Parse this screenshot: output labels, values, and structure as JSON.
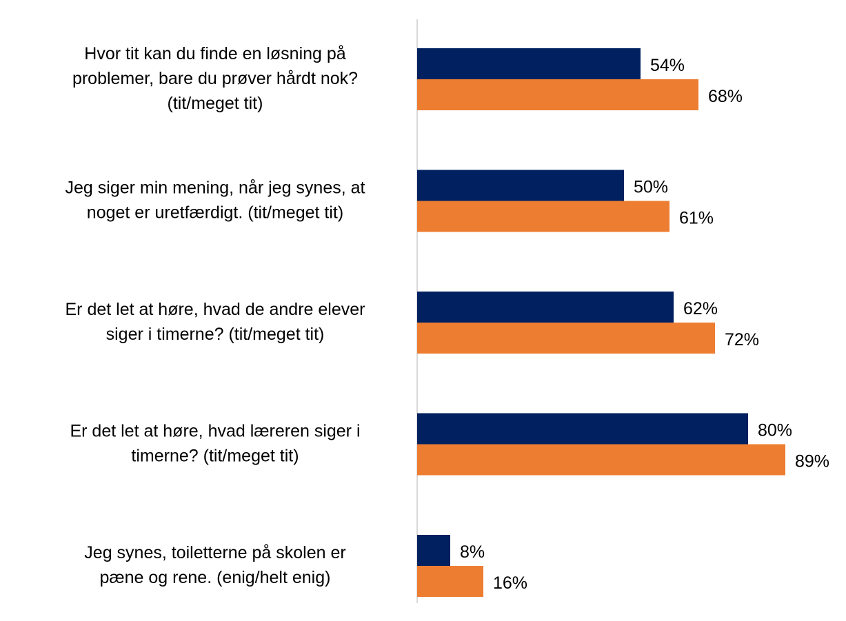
{
  "chart_data": {
    "type": "hbar",
    "categories": [
      "Hvor tit kan du finde en løsning på\nproblemer, bare du prøver hårdt nok?\n(tit/meget tit)",
      "Jeg siger min mening, når jeg synes, at\nnoget er uretfærdigt. (tit/meget tit)",
      "Er det let at høre, hvad de andre elever\nsiger i timerne? (tit/meget tit)",
      "Er det let at høre, hvad læreren siger i\ntimerne? (tit/meget tit)",
      "Jeg synes, toiletterne på skolen er\npæne og rene. (enig/helt enig)"
    ],
    "series": [
      {
        "color": "#002060",
        "values": [
          54,
          50,
          62,
          80,
          8
        ],
        "value_labels": [
          "54%",
          "50%",
          "62%",
          "80%",
          "8%"
        ]
      },
      {
        "color": "#ED7D31",
        "values": [
          68,
          61,
          72,
          89,
          16
        ],
        "value_labels": [
          "68%",
          "61%",
          "72%",
          "89%",
          "16%"
        ]
      }
    ],
    "xlim": [
      0,
      100
    ]
  }
}
